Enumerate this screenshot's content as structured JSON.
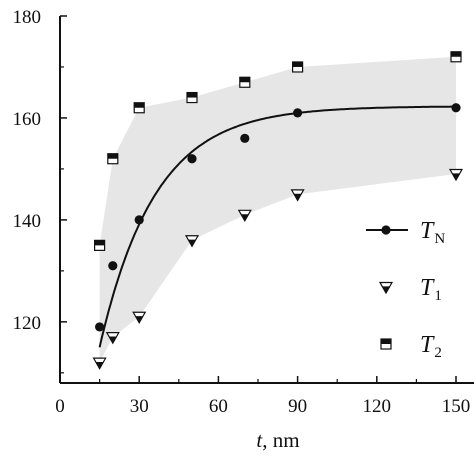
{
  "chart_data": {
    "type": "scatter",
    "title": "",
    "xlabel": "t, nm",
    "xlabel_var": "t",
    "xlabel_unit": ", nm",
    "ylabel": "",
    "xlim": [
      0,
      150
    ],
    "ylim": [
      108,
      180
    ],
    "x_ticks": [
      0,
      30,
      60,
      90,
      120,
      150
    ],
    "x_tick_labels": [
      "0",
      "30",
      "60",
      "90",
      "120",
      "150"
    ],
    "y_ticks": [
      120,
      140,
      160,
      180
    ],
    "y_tick_labels": [
      "120",
      "140",
      "160",
      "180"
    ],
    "grid": false,
    "legend_position": "right",
    "shaded_band": {
      "color": "#e6e6e6",
      "upper_series": "T2",
      "lower_series": "T1"
    },
    "series": [
      {
        "key": "TN",
        "name": "T",
        "sub": "N",
        "marker": "circle",
        "line": "smooth",
        "color": "#111111",
        "x": [
          15,
          20,
          30,
          50,
          70,
          90,
          150
        ],
        "y": [
          119,
          131,
          140,
          152,
          156,
          161,
          162
        ]
      },
      {
        "key": "T1",
        "name": "T",
        "sub": "1",
        "marker": "triangle-down",
        "color": "#111111",
        "x": [
          15,
          20,
          30,
          50,
          70,
          90,
          150
        ],
        "y": [
          112,
          117,
          121,
          136,
          141,
          145,
          149
        ]
      },
      {
        "key": "T2",
        "name": "T",
        "sub": "2",
        "marker": "square",
        "color": "#111111",
        "x": [
          15,
          20,
          30,
          50,
          70,
          90,
          150
        ],
        "y": [
          135,
          152,
          162,
          164,
          167,
          170,
          172
        ]
      }
    ]
  }
}
